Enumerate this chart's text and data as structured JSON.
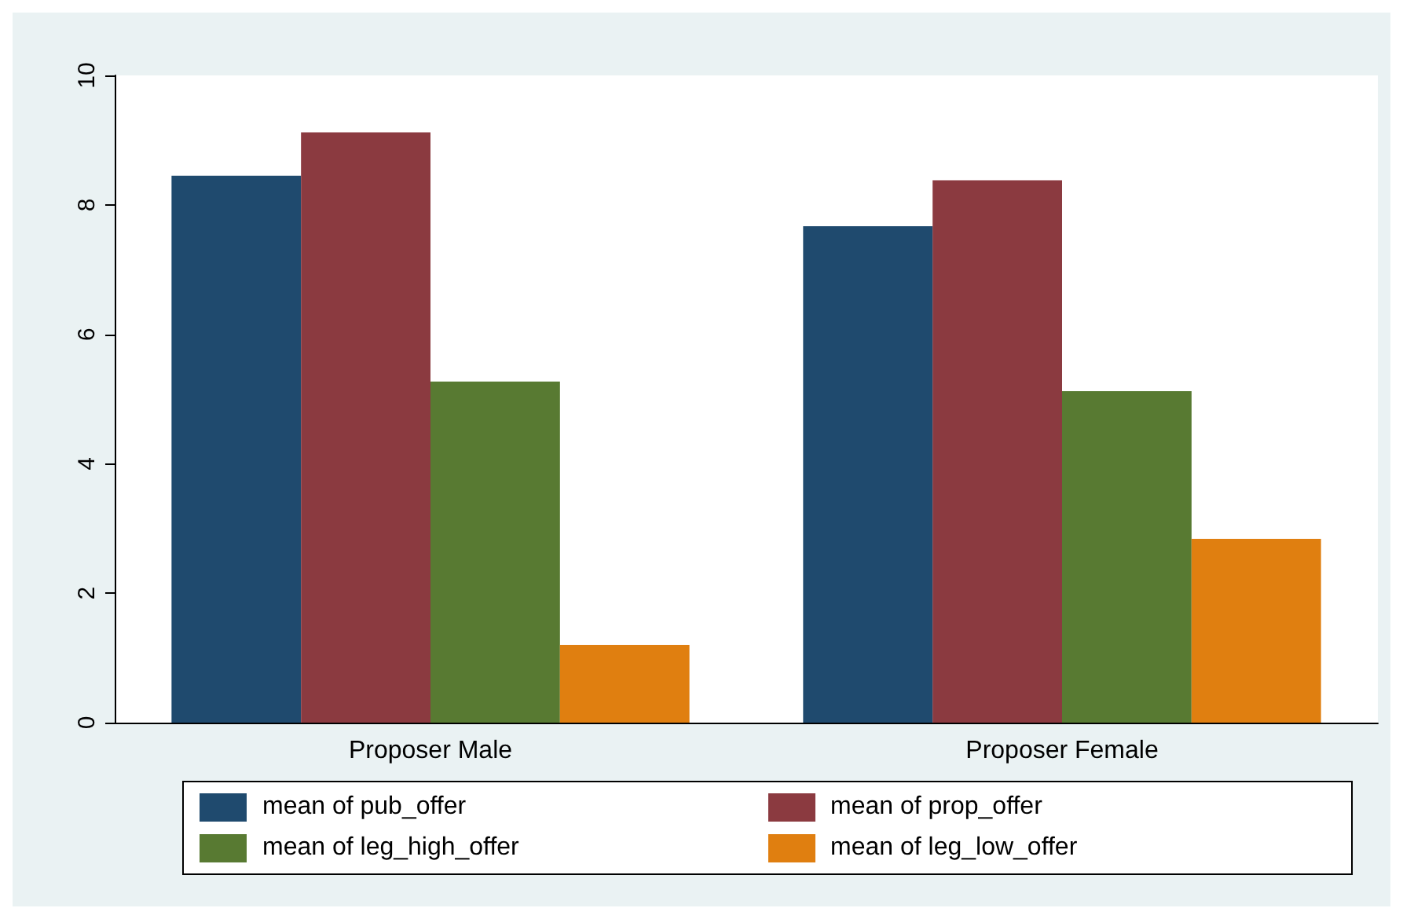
{
  "chart_data": {
    "type": "bar",
    "categories": [
      "Proposer Male",
      "Proposer Female"
    ],
    "series": [
      {
        "name": "mean of pub_offer",
        "color": "#1f4a6e",
        "values": [
          8.45,
          7.67
        ]
      },
      {
        "name": "mean of prop_offer",
        "color": "#8b3a40",
        "values": [
          9.12,
          8.38
        ]
      },
      {
        "name": "mean of leg_high_offer",
        "color": "#587a32",
        "values": [
          5.27,
          5.12
        ]
      },
      {
        "name": "mean of leg_low_offer",
        "color": "#e07f10",
        "values": [
          1.2,
          2.84
        ]
      }
    ],
    "ylim": [
      0,
      10
    ],
    "yticks": [
      0,
      2,
      4,
      6,
      8,
      10
    ],
    "grid": false,
    "legend": "bottom"
  }
}
